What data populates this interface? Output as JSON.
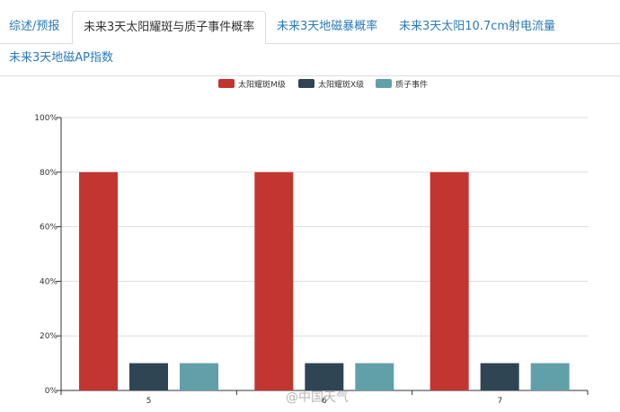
{
  "tabs": [
    {
      "label": "综述/预报",
      "active": false
    },
    {
      "label": "未来3天太阳耀斑与质子事件概率",
      "active": true
    },
    {
      "label": "未来3天地磁暴概率",
      "active": false
    },
    {
      "label": "未来3天太阳10.7cm射电流量",
      "active": false
    },
    {
      "label": "未来3天地磁AP指数",
      "active": false
    }
  ],
  "watermark": "@中国天气",
  "chart_data": {
    "type": "bar",
    "categories": [
      "5",
      "6",
      "7"
    ],
    "series": [
      {
        "name": "太阳耀斑M级",
        "values": [
          80,
          80,
          80
        ],
        "color": "#c23531"
      },
      {
        "name": "太阳耀斑X级",
        "values": [
          10,
          10,
          10
        ],
        "color": "#2f4554"
      },
      {
        "name": "质子事件",
        "values": [
          10,
          10,
          10
        ],
        "color": "#61a0a8"
      }
    ],
    "ylim": [
      0,
      100
    ],
    "yticks": [
      "0%",
      "20%",
      "40%",
      "60%",
      "80%",
      "100%"
    ],
    "grid": true,
    "legend": "top-center",
    "title": "",
    "xlabel": "",
    "ylabel": ""
  }
}
